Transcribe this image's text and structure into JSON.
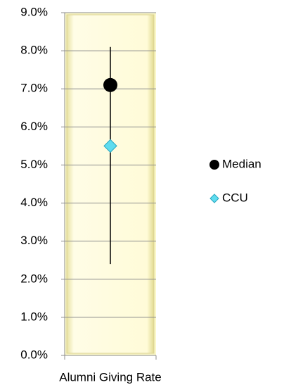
{
  "chart_data": {
    "type": "dot",
    "categories": [
      "Alumni Giving Rate"
    ],
    "series": [
      {
        "name": "Median",
        "color": "#000000",
        "marker": "circle",
        "values": [
          7.1
        ]
      },
      {
        "name": "CCU",
        "color": "#5fdcef",
        "marker": "diamond",
        "values": [
          5.5
        ]
      }
    ],
    "high_low": {
      "color": "#000000",
      "low": [
        2.4
      ],
      "high": [
        8.1
      ]
    },
    "ylim": [
      0,
      9
    ],
    "yticks": [
      {
        "value": 0,
        "label": "0.0%"
      },
      {
        "value": 1,
        "label": "1.0%"
      },
      {
        "value": 2,
        "label": "2.0%"
      },
      {
        "value": 3,
        "label": "3.0%"
      },
      {
        "value": 4,
        "label": "4.0%"
      },
      {
        "value": 5,
        "label": "5.0%"
      },
      {
        "value": 6,
        "label": "6.0%"
      },
      {
        "value": 7,
        "label": "7.0%"
      },
      {
        "value": 8,
        "label": "8.0%"
      },
      {
        "value": 9,
        "label": "9.0%"
      }
    ],
    "grid": true,
    "plot_fill": "#fbf8c8",
    "legend": "right"
  }
}
